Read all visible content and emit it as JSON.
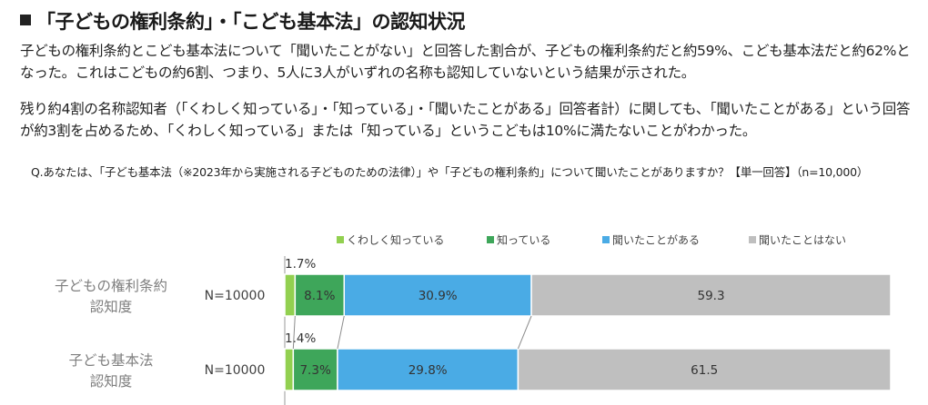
{
  "header": {
    "title": "「子どもの権利条約」・「こども基本法」の認知状況"
  },
  "body": {
    "paragraph1": "子どもの権利条約とこども基本法について「聞いたことがない」と回答した割合が、子どもの権利条約だと約59%、こども基本法だと約62%となった。これはこどもの約6割、つまり、5人に3人がいずれの名称も認知していないという結果が示された。",
    "paragraph2": "残り約4割の名称認知者（「くわしく知っている」・「知っている」・「聞いたことがある」回答者計）に関しても、「聞いたことがある」という回答が約3割を占めるため、「くわしく知っている」または「知っている」というこどもは10%に満たないことがわかった。",
    "question": "Q.あなたは、「子ども基本法（※2023年から実施される子どものための法律）」や「子どもの権利条約」について聞いたことがありますか？【単一回答】（n=10,000）"
  },
  "chart_data": {
    "type": "bar",
    "orientation": "horizontal-stacked-100",
    "categories": [
      "子どもの権利条約認知度",
      "子ども基本法認知度"
    ],
    "category_lines": [
      [
        "子どもの権利条約",
        "認知度"
      ],
      [
        "子ども基本法",
        "認知度"
      ]
    ],
    "n_labels": [
      "N=10000",
      "N=10000"
    ],
    "series": [
      {
        "name": "くわしく知っている",
        "values": [
          1.7,
          1.4
        ],
        "labels": [
          "1.7%",
          "1.4%"
        ],
        "color": "#92d050"
      },
      {
        "name": "知っている",
        "values": [
          8.1,
          7.3
        ],
        "labels": [
          "8.1%",
          "7.3%"
        ],
        "color": "#3ea65a"
      },
      {
        "name": "聞いたことがある",
        "values": [
          30.9,
          29.8
        ],
        "labels": [
          "30.9%",
          "29.8%"
        ],
        "color": "#4aabe5"
      },
      {
        "name": "聞いたことはない",
        "values": [
          59.3,
          61.5
        ],
        "labels": [
          "59.3",
          "61.5"
        ],
        "color": "#bfbfbf"
      }
    ],
    "xlim": [
      0,
      100
    ],
    "legend": "top",
    "grid": false
  }
}
